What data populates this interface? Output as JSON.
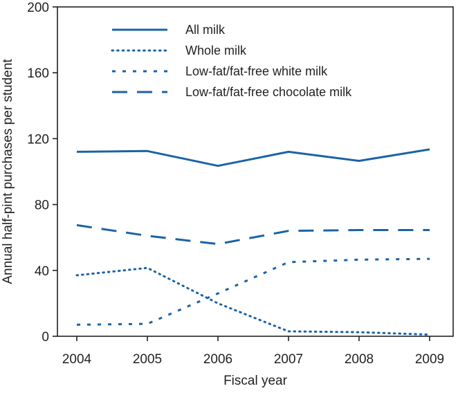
{
  "chart_data": {
    "type": "line",
    "title": "",
    "xlabel": "Fiscal year",
    "ylabel": "Annual half-pint purchases per student",
    "x": [
      "2004",
      "2005",
      "2006",
      "2007",
      "2008",
      "2009"
    ],
    "ylim": [
      0,
      200
    ],
    "yticks": [
      "0",
      "40",
      "80",
      "120",
      "160",
      "200"
    ],
    "grid": false,
    "legend_position": "top",
    "line_color": "#1b63a5",
    "series": [
      {
        "name": "All milk",
        "style": "solid",
        "values": [
          112,
          112.5,
          103.5,
          112,
          106.5,
          113.5
        ]
      },
      {
        "name": "Whole milk",
        "style": "dotted",
        "values": [
          37,
          41.5,
          20,
          3,
          2.5,
          1
        ]
      },
      {
        "name": "Low-fat/fat-free white milk",
        "style": "short-dash",
        "values": [
          7,
          7.5,
          26,
          45,
          46.5,
          47
        ]
      },
      {
        "name": "Low-fat/fat-free chocolate milk",
        "style": "long-dash",
        "values": [
          67.5,
          61,
          56,
          64,
          64.5,
          64.5
        ]
      }
    ]
  }
}
